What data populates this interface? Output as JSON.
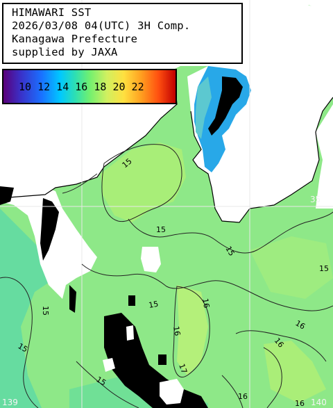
{
  "header": {
    "title": "HIMAWARI SST",
    "datetime": "2026/03/08 04(UTC) 3H Comp.",
    "region": "Kanagawa Prefecture",
    "credit": "supplied by JAXA"
  },
  "legend": {
    "labels": "10 12 14 16 18 20 22",
    "colors": [
      "#5a007a",
      "#1a70ff",
      "#00c8ff",
      "#70f070",
      "#ffe040",
      "#ff5010",
      "#c00000"
    ]
  },
  "grid": {
    "lat_label": "35",
    "lon_label_1": "139",
    "lon_label_2": "140"
  },
  "contours": {
    "c1": "15",
    "c2": "15",
    "c3": "15",
    "c4": "15",
    "c5": "15",
    "c6": "15",
    "c7": "16",
    "c8": "16",
    "c9": "16",
    "c10": "16",
    "c11": "17",
    "c12": "16",
    "c13": "15",
    "c14": "16",
    "c15": "15"
  },
  "colors": {
    "sea_main": "#8ee888",
    "sea_warm": "#b4f07a",
    "bay_cool": "#28a8e8",
    "land": "#ffffff",
    "no_data": "#000000"
  }
}
